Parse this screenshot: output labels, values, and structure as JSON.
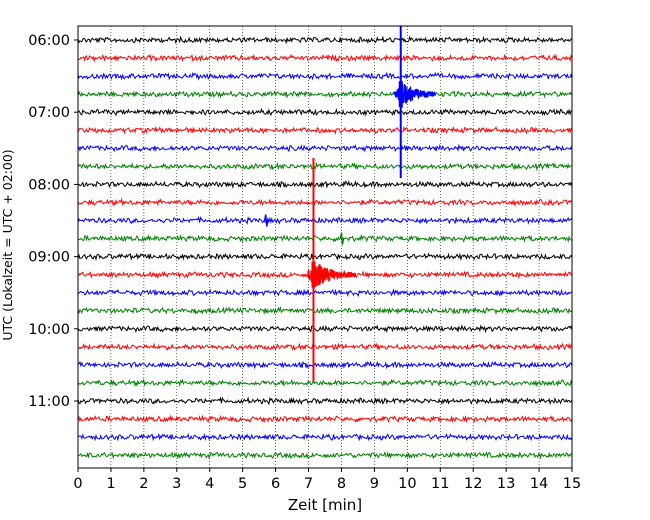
{
  "chart_data": {
    "type": "line",
    "subtype": "helicorder",
    "title": "",
    "xlabel": "Zeit  [min]",
    "ylabel": "UTC (Lokalzeit = UTC + 02:00)",
    "xlim": [
      0,
      15
    ],
    "x_ticks": [
      "0",
      "1",
      "2",
      "3",
      "4",
      "5",
      "6",
      "7",
      "8",
      "9",
      "10",
      "11",
      "12",
      "13",
      "14",
      "15"
    ],
    "grid": "vertical dotted",
    "trace_interval_min": 15,
    "first_trace_utc": "06:00",
    "trace_count": 24,
    "y_tick_labels": [
      "06:00",
      "07:00",
      "08:00",
      "09:00",
      "10:00",
      "11:00"
    ],
    "colors": [
      "#000000",
      "#ff0000",
      "#0000ff",
      "#008000"
    ],
    "events": [
      {
        "label": "",
        "start_trace_utc": "06:45",
        "minute": 9.8,
        "color": "#0000ff",
        "note": ""
      },
      {
        "label": "",
        "start_trace_utc": "09:15",
        "minute": 7.15,
        "color": "#ff0000",
        "note": ""
      }
    ],
    "small_spikes": [
      {
        "trace_utc": "08:30",
        "minute": 5.7
      },
      {
        "trace_utc": "08:45",
        "minute": 8.0
      }
    ]
  }
}
